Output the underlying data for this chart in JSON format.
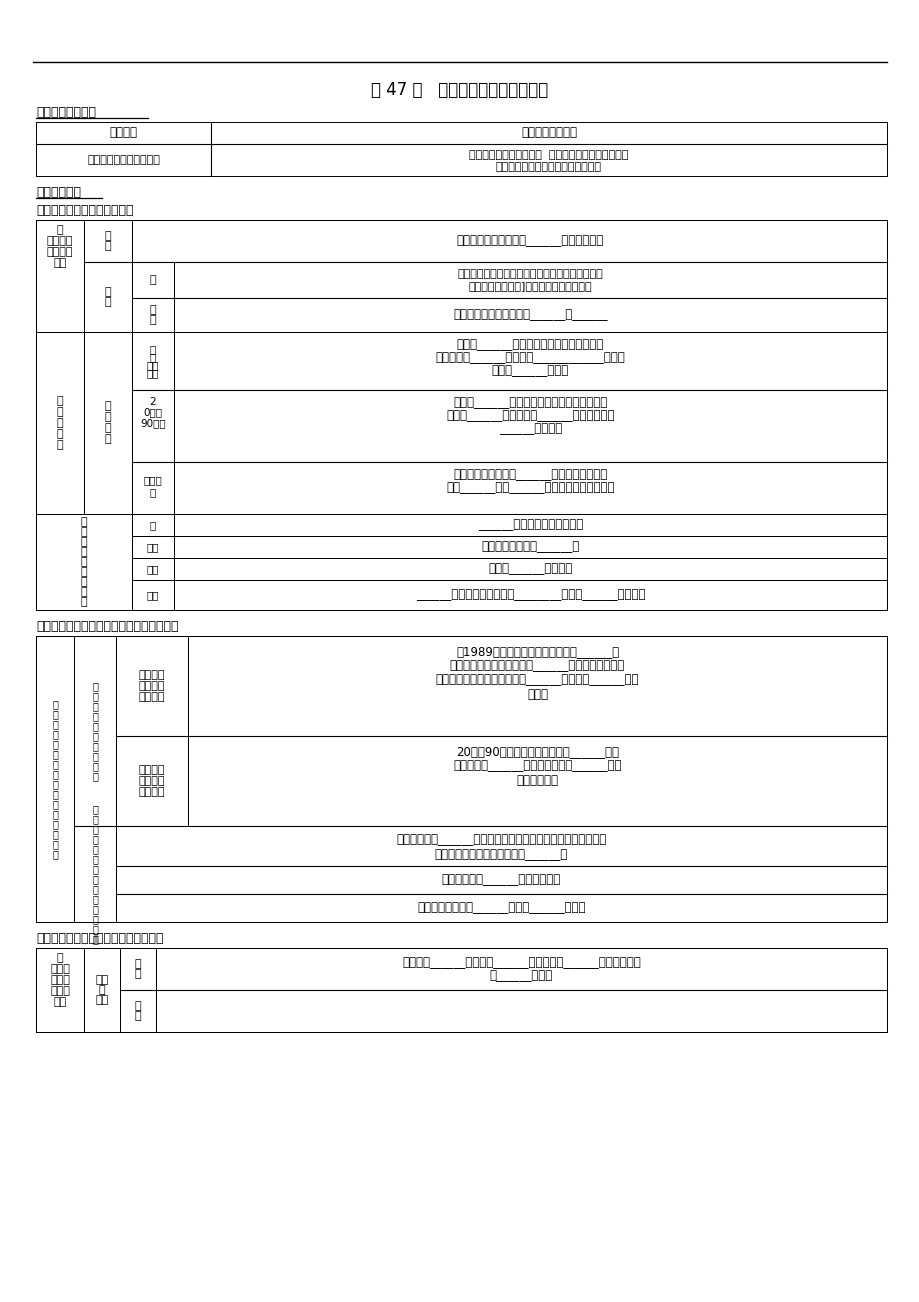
{
  "title": "第 47 讲   区域工业化与城市化进程",
  "sec1_title": "【考试说明要求】",
  "sec2_title": "【基础梳理】",
  "part1_title": "一．珠江三角洲的城市化进程",
  "part2_title": "二．工业化对珠江三角洲城市化的推动作用",
  "part3_title": "三．珠江三角洲的工业化和城市化问题",
  "table1_col1": "考试要点",
  "table1_col2": "具体考试内容要求",
  "table1_row1_c1": "区域工业化与城市化进程",
  "table1_row1_c2a": "珠江三角洲的城市化进程  工业化对城市化的推动作用",
  "table1_row1_c2b": "珠江三角洲地区工业化和城市化问题"
}
